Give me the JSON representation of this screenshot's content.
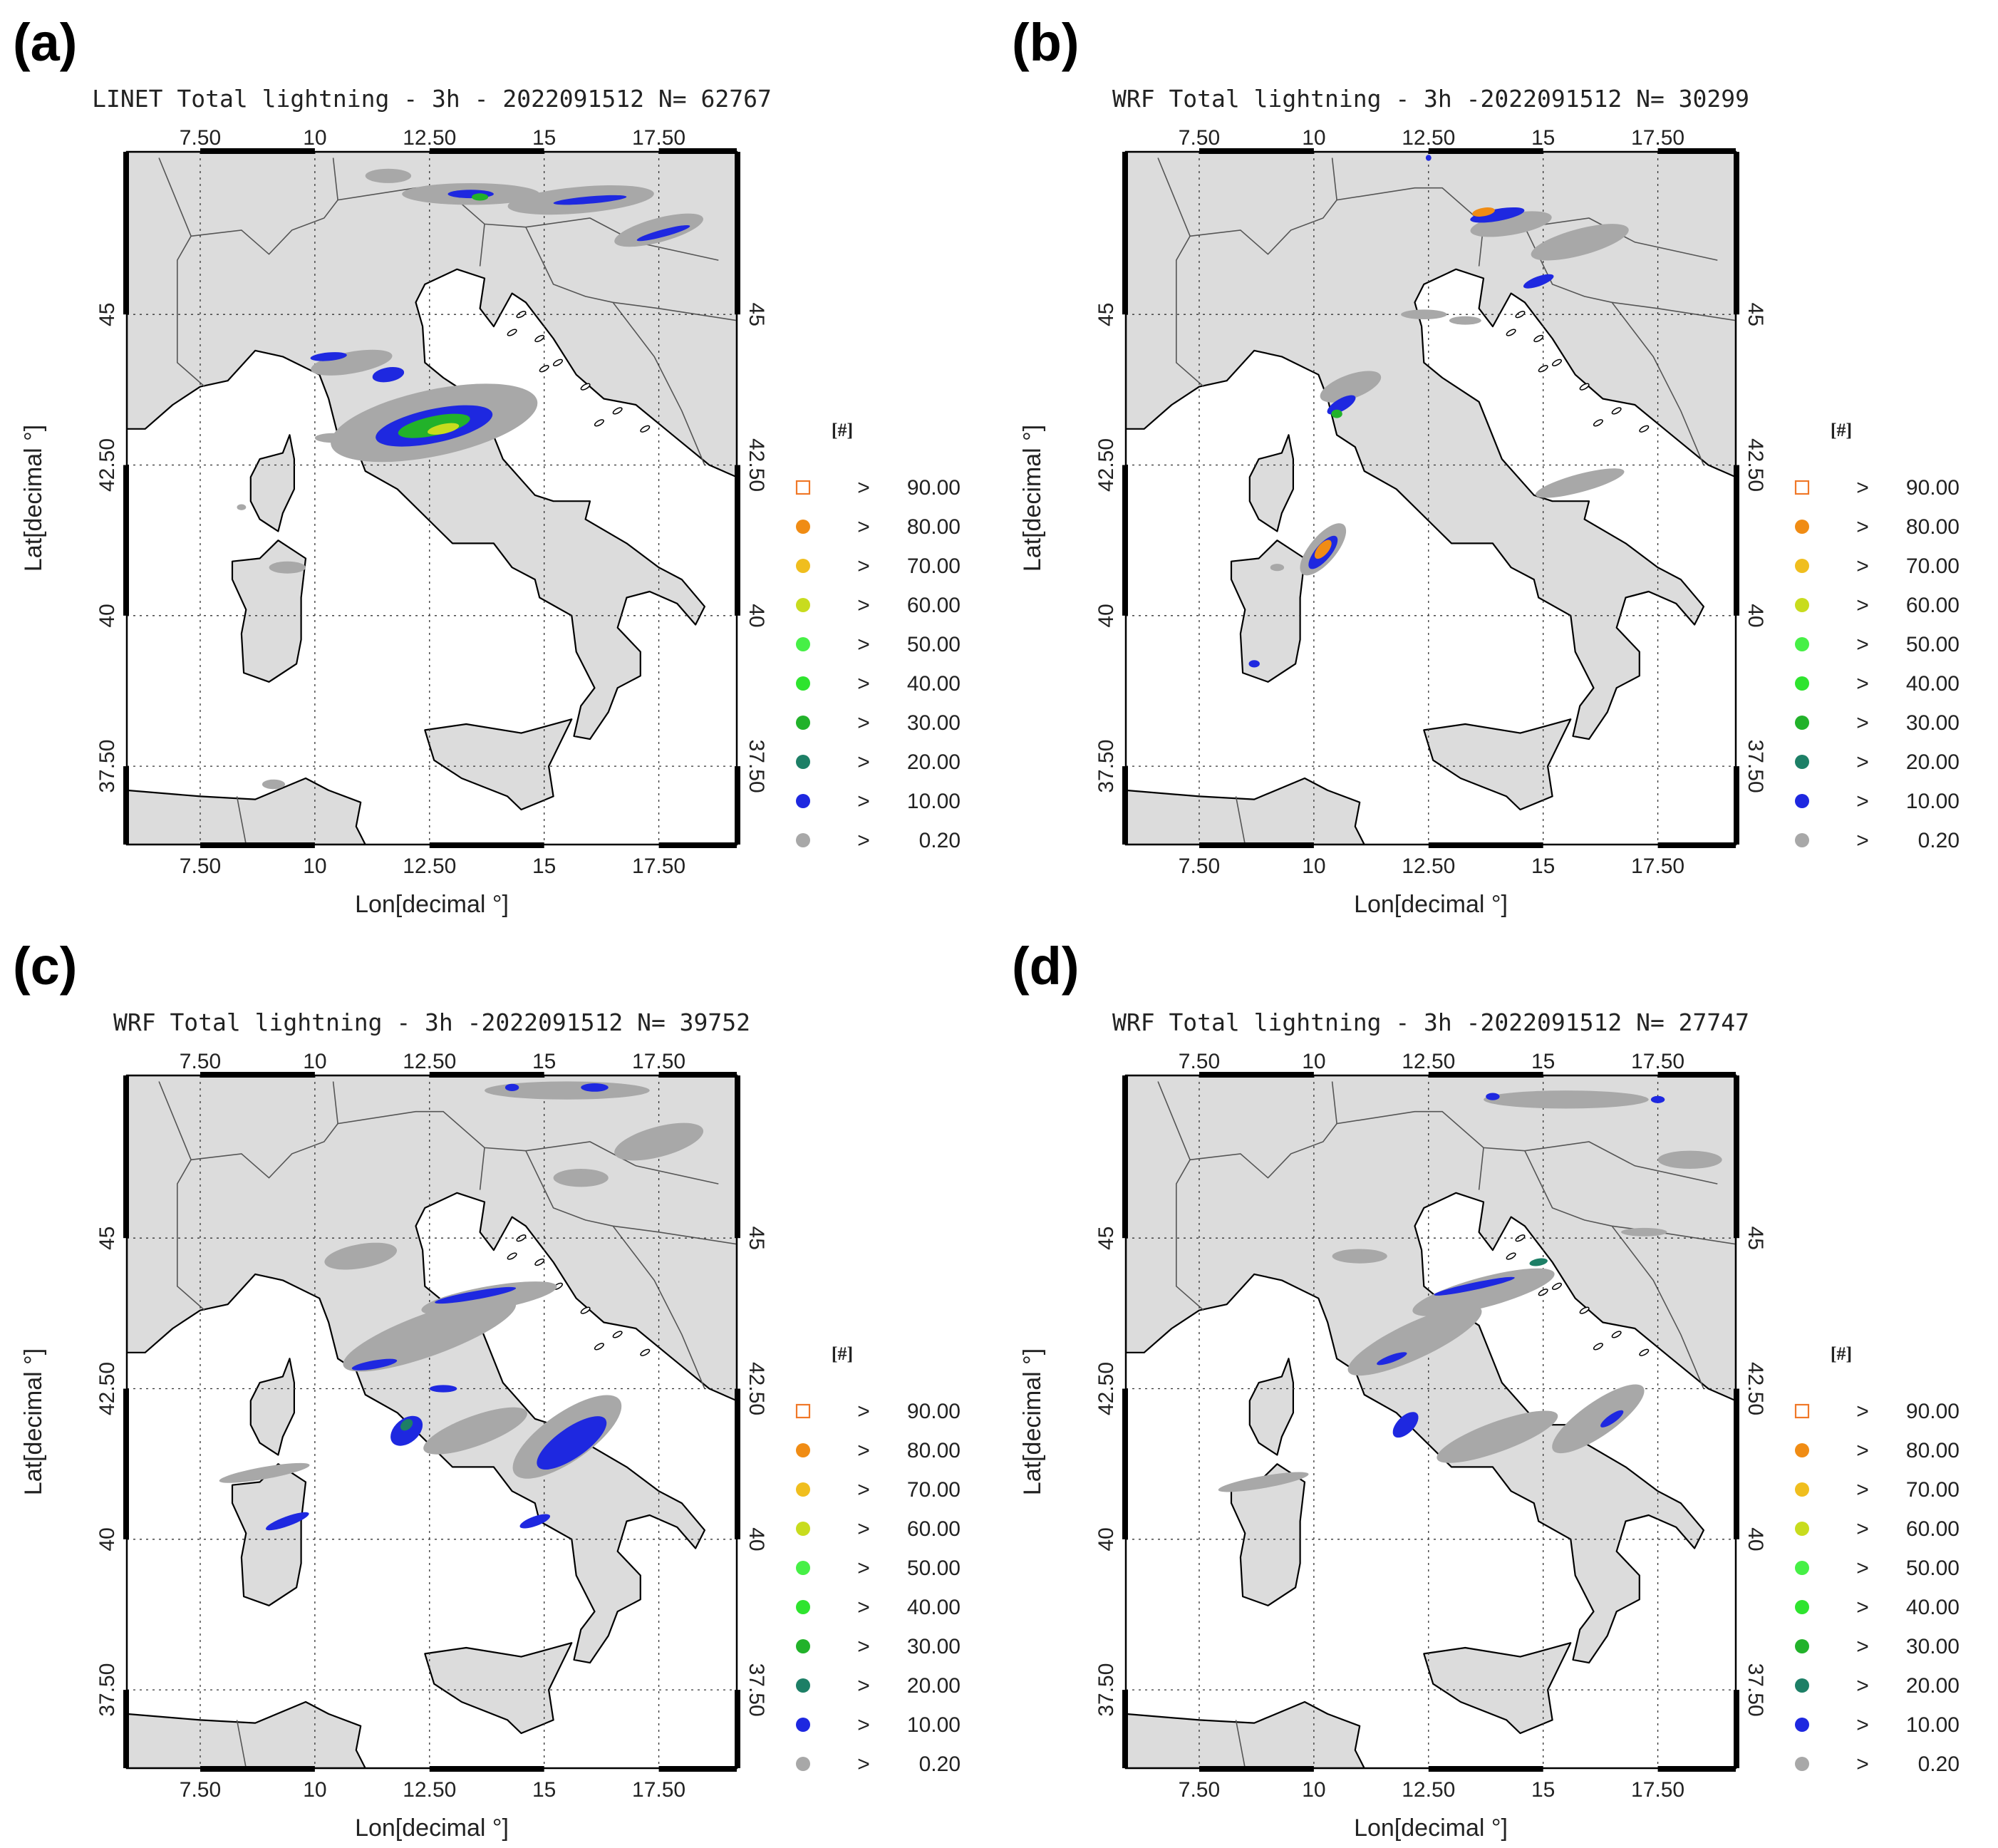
{
  "colors": {
    "land": "#dcdcdc",
    "sea": "#ffffff",
    "coast": "#000000",
    "border": "#555555",
    "gray": "#a8a8a8",
    "blue": "#1e28e0",
    "teal": "#1d7f66",
    "green30": "#22b22a",
    "green40": "#2ee42e",
    "green50": "#46f046",
    "yellowgreen": "#c8dc1e",
    "yellow": "#f0be1e",
    "orange": "#f08c14",
    "open_square": "#f07828"
  },
  "legend": {
    "title": "[#]",
    "items": [
      {
        "op": ">",
        "value": "90.00",
        "color": "#f07828",
        "marker": "open-square"
      },
      {
        "op": ">",
        "value": "80.00",
        "color": "#f08c14",
        "marker": "dot"
      },
      {
        "op": ">",
        "value": "70.00",
        "color": "#f0be1e",
        "marker": "dot"
      },
      {
        "op": ">",
        "value": "60.00",
        "color": "#c8dc1e",
        "marker": "dot"
      },
      {
        "op": ">",
        "value": "50.00",
        "color": "#46f046",
        "marker": "dot"
      },
      {
        "op": ">",
        "value": "40.00",
        "color": "#2ee42e",
        "marker": "dot"
      },
      {
        "op": ">",
        "value": "30.00",
        "color": "#22b22a",
        "marker": "dot"
      },
      {
        "op": ">",
        "value": "20.00",
        "color": "#1d7f66",
        "marker": "dot"
      },
      {
        "op": ">",
        "value": "10.00",
        "color": "#1e28e0",
        "marker": "dot"
      },
      {
        "op": ">",
        "value": "0.20",
        "color": "#a8a8a8",
        "marker": "dot"
      }
    ]
  },
  "axes": {
    "lon_ticks": [
      "7.50",
      "10",
      "12.50",
      "15",
      "17.50"
    ],
    "lon_values": [
      7.5,
      10,
      12.5,
      15,
      17.5
    ],
    "lat_ticks": [
      "37.50",
      "40",
      "42.50",
      "45"
    ],
    "lat_values": [
      37.5,
      40,
      42.5,
      45
    ],
    "lon_range": [
      5.9,
      19.2
    ],
    "lat_range": [
      36.2,
      47.7
    ],
    "xlabel": "Lon[decimal °]",
    "ylabel": "Lat[decimal °]"
  },
  "panels": [
    {
      "letter": "(a)",
      "title": "LINET Total lightning - 3h - 2022091512 N= 62767",
      "clusters": [
        {
          "lon": 13.4,
          "lat": 47.0,
          "rx": 1.5,
          "ry": 0.18,
          "angle": 0,
          "color": "gray"
        },
        {
          "lon": 15.8,
          "lat": 46.9,
          "rx": 1.6,
          "ry": 0.22,
          "angle": -5,
          "color": "gray"
        },
        {
          "lon": 17.5,
          "lat": 46.4,
          "rx": 1.0,
          "ry": 0.2,
          "angle": -15,
          "color": "gray"
        },
        {
          "lon": 11.6,
          "lat": 47.3,
          "rx": 0.5,
          "ry": 0.12,
          "angle": 0,
          "color": "gray"
        },
        {
          "lon": 13.4,
          "lat": 47.0,
          "rx": 0.5,
          "ry": 0.07,
          "angle": 0,
          "color": "blue"
        },
        {
          "lon": 16.0,
          "lat": 46.9,
          "rx": 0.8,
          "ry": 0.06,
          "angle": -5,
          "color": "blue"
        },
        {
          "lon": 17.6,
          "lat": 46.35,
          "rx": 0.6,
          "ry": 0.06,
          "angle": -15,
          "color": "blue"
        },
        {
          "lon": 13.6,
          "lat": 46.95,
          "rx": 0.18,
          "ry": 0.06,
          "angle": 0,
          "color": "green30"
        },
        {
          "lon": 10.8,
          "lat": 44.2,
          "rx": 0.9,
          "ry": 0.18,
          "angle": -10,
          "color": "gray"
        },
        {
          "lon": 10.3,
          "lat": 44.3,
          "rx": 0.4,
          "ry": 0.07,
          "angle": -5,
          "color": "blue"
        },
        {
          "lon": 11.6,
          "lat": 44.0,
          "rx": 0.35,
          "ry": 0.12,
          "angle": -10,
          "color": "blue"
        },
        {
          "lon": 12.6,
          "lat": 43.2,
          "rx": 2.3,
          "ry": 0.55,
          "angle": -12,
          "color": "gray"
        },
        {
          "lon": 12.6,
          "lat": 43.15,
          "rx": 1.3,
          "ry": 0.28,
          "angle": -12,
          "color": "blue"
        },
        {
          "lon": 12.6,
          "lat": 43.15,
          "rx": 0.8,
          "ry": 0.16,
          "angle": -12,
          "color": "green30"
        },
        {
          "lon": 12.8,
          "lat": 43.1,
          "rx": 0.35,
          "ry": 0.08,
          "angle": -12,
          "color": "yellowgreen"
        },
        {
          "lon": 10.4,
          "lat": 42.95,
          "rx": 0.4,
          "ry": 0.08,
          "angle": 0,
          "color": "gray"
        },
        {
          "lon": 9.4,
          "lat": 40.8,
          "rx": 0.4,
          "ry": 0.1,
          "angle": 0,
          "color": "gray"
        },
        {
          "lon": 9.1,
          "lat": 37.2,
          "rx": 0.25,
          "ry": 0.08,
          "angle": 0,
          "color": "gray"
        },
        {
          "lon": 8.4,
          "lat": 41.8,
          "rx": 0.1,
          "ry": 0.05,
          "angle": 0,
          "color": "gray"
        }
      ]
    },
    {
      "letter": "(b)",
      "title": "WRF Total lightning - 3h -2022091512 N= 30299",
      "clusters": [
        {
          "lon": 14.3,
          "lat": 46.5,
          "rx": 0.9,
          "ry": 0.18,
          "angle": -10,
          "color": "gray"
        },
        {
          "lon": 14.0,
          "lat": 46.65,
          "rx": 0.6,
          "ry": 0.1,
          "angle": -10,
          "color": "blue"
        },
        {
          "lon": 13.7,
          "lat": 46.7,
          "rx": 0.25,
          "ry": 0.07,
          "angle": -10,
          "color": "orange"
        },
        {
          "lon": 15.8,
          "lat": 46.2,
          "rx": 1.1,
          "ry": 0.22,
          "angle": -15,
          "color": "gray"
        },
        {
          "lon": 14.9,
          "lat": 45.55,
          "rx": 0.35,
          "ry": 0.08,
          "angle": -20,
          "color": "blue"
        },
        {
          "lon": 12.4,
          "lat": 45.0,
          "rx": 0.5,
          "ry": 0.08,
          "angle": 0,
          "color": "gray"
        },
        {
          "lon": 13.3,
          "lat": 44.9,
          "rx": 0.35,
          "ry": 0.07,
          "angle": 0,
          "color": "gray"
        },
        {
          "lon": 10.8,
          "lat": 43.8,
          "rx": 0.7,
          "ry": 0.2,
          "angle": -20,
          "color": "gray"
        },
        {
          "lon": 10.6,
          "lat": 43.5,
          "rx": 0.35,
          "ry": 0.1,
          "angle": -30,
          "color": "blue"
        },
        {
          "lon": 10.5,
          "lat": 43.35,
          "rx": 0.12,
          "ry": 0.07,
          "angle": 0,
          "color": "green30"
        },
        {
          "lon": 10.2,
          "lat": 41.1,
          "rx": 0.7,
          "ry": 0.22,
          "angle": -50,
          "color": "gray"
        },
        {
          "lon": 10.2,
          "lat": 41.05,
          "rx": 0.45,
          "ry": 0.13,
          "angle": -50,
          "color": "blue"
        },
        {
          "lon": 10.2,
          "lat": 41.1,
          "rx": 0.25,
          "ry": 0.09,
          "angle": -50,
          "color": "orange"
        },
        {
          "lon": 9.2,
          "lat": 40.8,
          "rx": 0.15,
          "ry": 0.06,
          "angle": 0,
          "color": "gray"
        },
        {
          "lon": 8.7,
          "lat": 39.2,
          "rx": 0.12,
          "ry": 0.06,
          "angle": 0,
          "color": "blue"
        },
        {
          "lon": 15.8,
          "lat": 42.2,
          "rx": 1.0,
          "ry": 0.15,
          "angle": -15,
          "color": "gray"
        },
        {
          "lon": 12.5,
          "lat": 47.6,
          "rx": 0.06,
          "ry": 0.05,
          "angle": 0,
          "color": "blue"
        }
      ]
    },
    {
      "letter": "(c)",
      "title": "WRF Total lightning - 3h -2022091512 N= 39752",
      "clusters": [
        {
          "lon": 15.5,
          "lat": 47.45,
          "rx": 1.8,
          "ry": 0.15,
          "angle": 0,
          "color": "gray"
        },
        {
          "lon": 14.3,
          "lat": 47.5,
          "rx": 0.15,
          "ry": 0.06,
          "angle": 0,
          "color": "blue"
        },
        {
          "lon": 16.1,
          "lat": 47.5,
          "rx": 0.3,
          "ry": 0.07,
          "angle": 0,
          "color": "blue"
        },
        {
          "lon": 17.5,
          "lat": 46.6,
          "rx": 1.0,
          "ry": 0.25,
          "angle": -15,
          "color": "gray"
        },
        {
          "lon": 15.8,
          "lat": 46.0,
          "rx": 0.6,
          "ry": 0.15,
          "angle": 0,
          "color": "gray"
        },
        {
          "lon": 11.0,
          "lat": 44.7,
          "rx": 0.8,
          "ry": 0.2,
          "angle": -10,
          "color": "gray"
        },
        {
          "lon": 13.8,
          "lat": 44.0,
          "rx": 1.5,
          "ry": 0.2,
          "angle": -10,
          "color": "gray"
        },
        {
          "lon": 12.5,
          "lat": 43.4,
          "rx": 2.0,
          "ry": 0.35,
          "angle": -20,
          "color": "gray"
        },
        {
          "lon": 13.5,
          "lat": 44.05,
          "rx": 0.9,
          "ry": 0.07,
          "angle": -10,
          "color": "blue"
        },
        {
          "lon": 11.3,
          "lat": 42.9,
          "rx": 0.5,
          "ry": 0.07,
          "angle": -10,
          "color": "blue"
        },
        {
          "lon": 12.0,
          "lat": 41.8,
          "rx": 0.4,
          "ry": 0.2,
          "angle": -40,
          "color": "blue"
        },
        {
          "lon": 12.0,
          "lat": 41.9,
          "rx": 0.15,
          "ry": 0.08,
          "angle": -40,
          "color": "teal"
        },
        {
          "lon": 13.5,
          "lat": 41.8,
          "rx": 1.2,
          "ry": 0.25,
          "angle": -20,
          "color": "gray"
        },
        {
          "lon": 15.5,
          "lat": 41.7,
          "rx": 1.4,
          "ry": 0.4,
          "angle": -35,
          "color": "gray"
        },
        {
          "lon": 15.6,
          "lat": 41.6,
          "rx": 0.9,
          "ry": 0.25,
          "angle": -35,
          "color": "blue"
        },
        {
          "lon": 14.8,
          "lat": 40.3,
          "rx": 0.35,
          "ry": 0.08,
          "angle": -20,
          "color": "blue"
        },
        {
          "lon": 8.9,
          "lat": 41.1,
          "rx": 1.0,
          "ry": 0.1,
          "angle": -10,
          "color": "gray"
        },
        {
          "lon": 9.4,
          "lat": 40.3,
          "rx": 0.5,
          "ry": 0.08,
          "angle": -20,
          "color": "blue"
        },
        {
          "lon": 12.8,
          "lat": 42.5,
          "rx": 0.3,
          "ry": 0.06,
          "angle": 0,
          "color": "blue"
        }
      ]
    },
    {
      "letter": "(d)",
      "title": "WRF Total lightning - 3h -2022091512 N= 27747",
      "clusters": [
        {
          "lon": 15.5,
          "lat": 47.3,
          "rx": 1.8,
          "ry": 0.15,
          "angle": 0,
          "color": "gray"
        },
        {
          "lon": 13.9,
          "lat": 47.35,
          "rx": 0.15,
          "ry": 0.06,
          "angle": 0,
          "color": "blue"
        },
        {
          "lon": 17.5,
          "lat": 47.3,
          "rx": 0.15,
          "ry": 0.06,
          "angle": 0,
          "color": "blue"
        },
        {
          "lon": 18.2,
          "lat": 46.3,
          "rx": 0.7,
          "ry": 0.15,
          "angle": 0,
          "color": "gray"
        },
        {
          "lon": 17.2,
          "lat": 45.1,
          "rx": 0.5,
          "ry": 0.07,
          "angle": 0,
          "color": "gray"
        },
        {
          "lon": 11.0,
          "lat": 44.7,
          "rx": 0.6,
          "ry": 0.12,
          "angle": 0,
          "color": "gray"
        },
        {
          "lon": 13.7,
          "lat": 44.1,
          "rx": 1.6,
          "ry": 0.25,
          "angle": -15,
          "color": "gray"
        },
        {
          "lon": 13.5,
          "lat": 44.2,
          "rx": 0.9,
          "ry": 0.06,
          "angle": -12,
          "color": "blue"
        },
        {
          "lon": 12.2,
          "lat": 43.3,
          "rx": 1.6,
          "ry": 0.3,
          "angle": -25,
          "color": "gray"
        },
        {
          "lon": 11.7,
          "lat": 43.0,
          "rx": 0.35,
          "ry": 0.06,
          "angle": -20,
          "color": "blue"
        },
        {
          "lon": 12.0,
          "lat": 41.9,
          "rx": 0.35,
          "ry": 0.14,
          "angle": -45,
          "color": "blue"
        },
        {
          "lon": 14.0,
          "lat": 41.7,
          "rx": 1.4,
          "ry": 0.25,
          "angle": -20,
          "color": "gray"
        },
        {
          "lon": 16.2,
          "lat": 42.0,
          "rx": 1.2,
          "ry": 0.28,
          "angle": -35,
          "color": "gray"
        },
        {
          "lon": 16.5,
          "lat": 42.0,
          "rx": 0.3,
          "ry": 0.07,
          "angle": -35,
          "color": "blue"
        },
        {
          "lon": 8.9,
          "lat": 40.95,
          "rx": 1.0,
          "ry": 0.1,
          "angle": -10,
          "color": "gray"
        },
        {
          "lon": 14.9,
          "lat": 44.6,
          "rx": 0.2,
          "ry": 0.06,
          "angle": -10,
          "color": "teal"
        }
      ]
    }
  ]
}
